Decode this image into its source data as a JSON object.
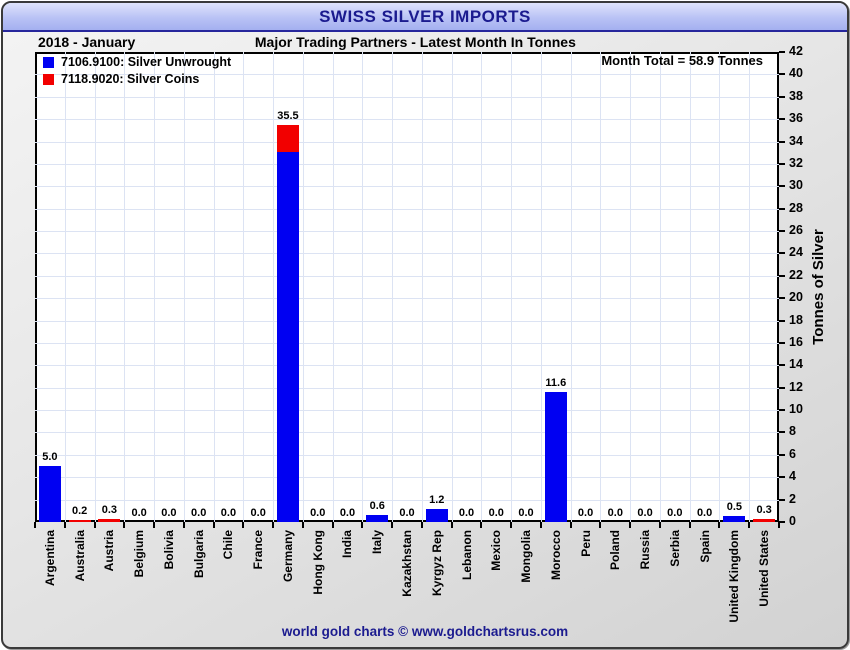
{
  "chart": {
    "title": "SWISS SILVER IMPORTS",
    "period": "2018 - January",
    "subtitle": "Major Trading Partners - Latest Month In Tonnes",
    "month_total": "Month Total = 58.9 Tonnes",
    "ylabel": "Tonnes of Silver",
    "footer": "world gold charts © www.goldchartsrus.com",
    "title_color": "#1b1b8f",
    "legend": [
      {
        "label": "7106.9100: Silver Unwrought",
        "color": "#0000f2"
      },
      {
        "label": "7118.9020: Silver Coins",
        "color": "#f20000"
      }
    ]
  },
  "chart_data": {
    "type": "bar",
    "stacked": true,
    "title": "SWISS SILVER IMPORTS",
    "subtitle": "Major Trading Partners - Latest Month In Tonnes",
    "xlabel": "",
    "ylabel": "Tonnes of Silver",
    "ylim": [
      0,
      42
    ],
    "yticks": [
      0,
      2,
      4,
      6,
      8,
      10,
      12,
      14,
      16,
      18,
      20,
      22,
      24,
      26,
      28,
      30,
      32,
      34,
      36,
      38,
      40,
      42
    ],
    "grid": true,
    "grid_color": "#dce3f3",
    "legend_position": "top-left",
    "categories": [
      "Argentina",
      "Australia",
      "Austria",
      "Belgium",
      "Bolivia",
      "Bulgaria",
      "Chile",
      "France",
      "Germany",
      "Hong Kong",
      "India",
      "Italy",
      "Kazakhstan",
      "Kyrgyz Rep",
      "Lebanon",
      "Mexico",
      "Mongolia",
      "Morocco",
      "Peru",
      "Poland",
      "Russia",
      "Serbia",
      "Spain",
      "United Kingdom",
      "United States"
    ],
    "series": [
      {
        "name": "7106.9100: Silver Unwrought",
        "color": "#0000f2",
        "values": [
          5.0,
          0,
          0,
          0,
          0,
          0,
          0,
          0,
          33.1,
          0,
          0,
          0.6,
          0,
          1.2,
          0,
          0,
          0,
          11.6,
          0,
          0,
          0,
          0,
          0,
          0.5,
          0
        ]
      },
      {
        "name": "7118.9020: Silver Coins",
        "color": "#f20000",
        "values": [
          0,
          0.2,
          0.3,
          0,
          0,
          0,
          0,
          0,
          2.4,
          0,
          0,
          0,
          0,
          0,
          0,
          0,
          0,
          0,
          0,
          0,
          0,
          0,
          0,
          0,
          0.3
        ]
      }
    ],
    "bar_labels": [
      "5.0",
      "0.2",
      "0.3",
      "0.0",
      "0.0",
      "0.0",
      "0.0",
      "0.0",
      "35.5",
      "0.0",
      "0.0",
      "0.6",
      "0.0",
      "1.2",
      "0.0",
      "0.0",
      "0.0",
      "11.6",
      "0.0",
      "0.0",
      "0.0",
      "0.0",
      "0.0",
      "0.5",
      "0.3"
    ]
  }
}
